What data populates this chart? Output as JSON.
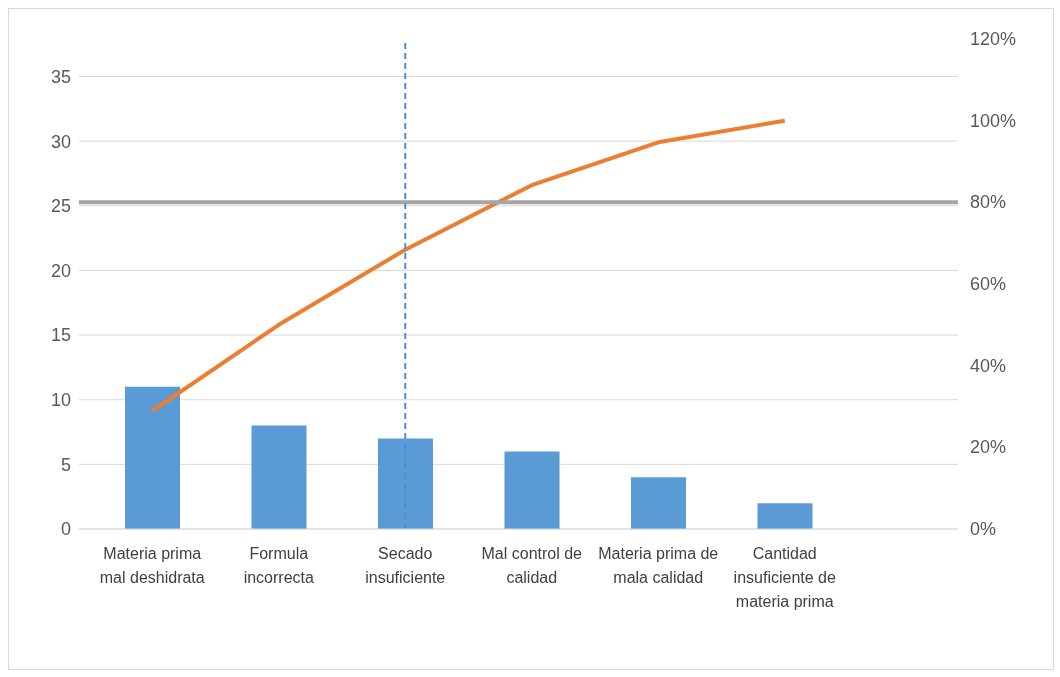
{
  "chart_data": {
    "type": "bar",
    "categories": [
      "Materia prima mal deshidrata",
      "Formula incorrecta",
      "Secado insuficiente",
      "Mal control de calidad",
      "Materia prima de mala calidad",
      "Cantidad insuficiente de materia prima"
    ],
    "series": [
      {
        "color": "#5b9bd5",
        "values": [
          11,
          8,
          7,
          6,
          4,
          2
        ]
      },
      {
        "type": "line",
        "axis": "y2",
        "color": "#ed7d31",
        "values": [
          28.9,
          50,
          68.4,
          84.2,
          94.7,
          100
        ]
      }
    ],
    "ylim": [
      0,
      37.9
    ],
    "yticks": [
      0,
      5,
      10,
      15,
      20,
      25,
      30,
      35
    ],
    "y2lim": [
      0,
      120
    ],
    "y2ticks": [
      {
        "value": 0,
        "label": "0%"
      },
      {
        "value": 20,
        "label": "20%"
      },
      {
        "value": 40,
        "label": "40%"
      },
      {
        "value": 60,
        "label": "60%"
      },
      {
        "value": 80,
        "label": "80%"
      },
      {
        "value": 100,
        "label": "100%"
      },
      {
        "value": 120,
        "label": "120%"
      }
    ],
    "grid": "y",
    "marker": "none",
    "ref_lines": [
      {
        "axis": "y2",
        "value": 80,
        "color": "#a5a5a5",
        "line_style": "solid"
      },
      {
        "axis": "x",
        "value": "Secado insuficiente",
        "color": "#4a90d9",
        "line_style": "dashed"
      }
    ]
  }
}
